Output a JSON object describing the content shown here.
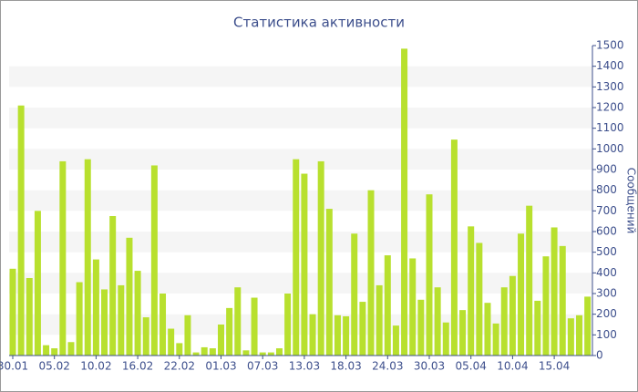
{
  "chart_data": {
    "type": "bar",
    "title": "Статистика активности",
    "y_label": "Сообщений",
    "categories": [
      "30.01",
      null,
      null,
      null,
      null,
      "05.02",
      null,
      null,
      null,
      null,
      "10.02",
      null,
      null,
      null,
      null,
      "16.02",
      null,
      null,
      null,
      null,
      "22.02",
      null,
      null,
      null,
      null,
      "01.03",
      null,
      null,
      null,
      null,
      "07.03",
      null,
      null,
      null,
      null,
      "13.03",
      null,
      null,
      null,
      null,
      "18.03",
      null,
      null,
      null,
      null,
      "24.03",
      null,
      null,
      null,
      null,
      "30.03",
      null,
      null,
      null,
      null,
      "05.04",
      null,
      null,
      null,
      null,
      "10.04",
      null,
      null,
      null,
      null,
      "15.04",
      null,
      null,
      null,
      null
    ],
    "values": [
      420,
      1210,
      375,
      700,
      50,
      35,
      940,
      65,
      355,
      950,
      465,
      320,
      675,
      340,
      570,
      410,
      185,
      920,
      300,
      130,
      60,
      195,
      15,
      40,
      35,
      150,
      230,
      330,
      25,
      280,
      15,
      15,
      35,
      300,
      950,
      880,
      200,
      940,
      710,
      195,
      190,
      590,
      260,
      800,
      340,
      485,
      145,
      1485,
      470,
      270,
      780,
      330,
      160,
      1045,
      220,
      625,
      545,
      255,
      155,
      330,
      385,
      590,
      725,
      265,
      480,
      620,
      530,
      180,
      195,
      285
    ],
    "color": "#b8e02e",
    "ylim": [
      0,
      1500
    ],
    "yticks": [
      0,
      100,
      200,
      300,
      400,
      500,
      600,
      700,
      800,
      900,
      1000,
      1100,
      1200,
      1300,
      1400,
      1500
    ],
    "grid": true
  }
}
